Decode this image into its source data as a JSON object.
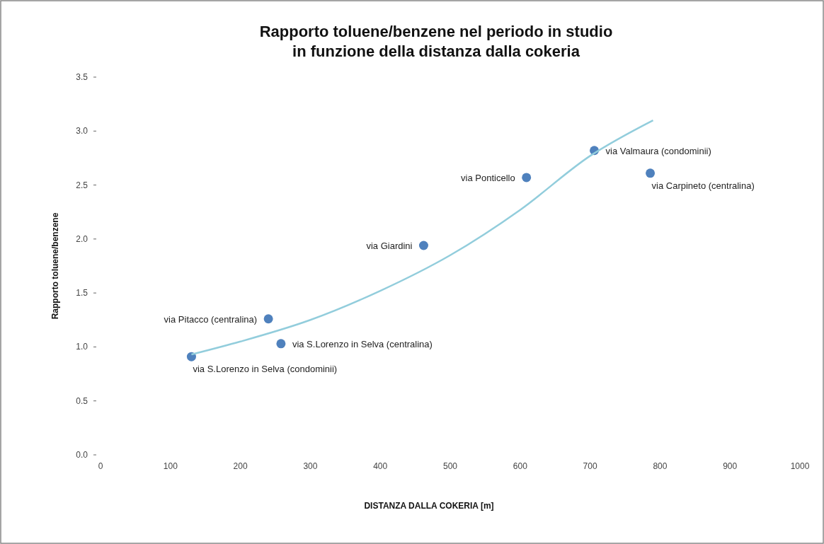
{
  "chart_data": {
    "type": "scatter",
    "title": "Rapporto toluene/benzene nel periodo in studio\nin funzione della distanza dalla cokeria",
    "xlabel": "DISTANZA DALLA COKERIA [m]",
    "ylabel": "Rapporto toluene/benzene",
    "series": [
      {
        "color": "#4f81bd",
        "x": [
          130,
          240,
          258,
          462,
          609,
          706,
          786
        ],
        "values": [
          0.91,
          1.26,
          1.03,
          1.94,
          2.57,
          2.82,
          2.61
        ],
        "marker": "circle"
      },
      {
        "type": "line",
        "color": "#92cddc",
        "x": [
          130,
          200,
          300,
          400,
          500,
          600,
          700,
          790
        ],
        "values": [
          0.93,
          1.05,
          1.25,
          1.52,
          1.85,
          2.27,
          2.77,
          3.1
        ],
        "marker": "none"
      }
    ],
    "xlim": [
      0,
      1000
    ],
    "xticks": [
      0,
      100,
      200,
      300,
      400,
      500,
      600,
      700,
      800,
      900,
      1000
    ],
    "ylim": [
      0,
      3.5
    ],
    "yticks": [
      {
        "value": 0,
        "label": "0.0"
      },
      {
        "value": 0.5,
        "label": "0.5"
      },
      {
        "value": 1,
        "label": "1.0"
      },
      {
        "value": 1.5,
        "label": "1.5"
      },
      {
        "value": 2,
        "label": "2.0"
      },
      {
        "value": 2.5,
        "label": "2.5"
      },
      {
        "value": 3,
        "label": "3.0"
      },
      {
        "value": 3.5,
        "label": "3.5"
      }
    ],
    "grid": false,
    "annotations": [
      {
        "text": "via S.Lorenzo in Selva (condominii)",
        "x": 130,
        "y": 0.91
      },
      {
        "text": "via Pitacco (centralina)",
        "x": 240,
        "y": 1.26
      },
      {
        "text": "via S.Lorenzo in Selva (centralina)",
        "x": 258,
        "y": 1.03
      },
      {
        "text": "via Giardini",
        "x": 462,
        "y": 1.94
      },
      {
        "text": "via Ponticello",
        "x": 609,
        "y": 2.57
      },
      {
        "text": "via Valmaura (condominii)",
        "x": 706,
        "y": 2.82
      },
      {
        "text": "via Carpineto (centralina)",
        "x": 786,
        "y": 2.61
      }
    ]
  }
}
